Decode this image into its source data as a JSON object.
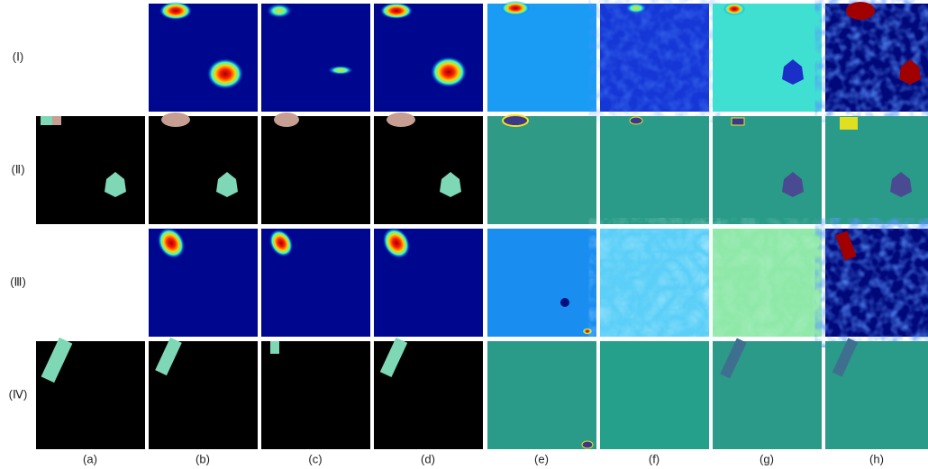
{
  "row_labels": [
    "(Ⅰ)",
    "(Ⅱ)",
    "(Ⅲ)",
    "(Ⅳ)"
  ],
  "column_labels": [
    "(a)",
    "(b)",
    "(c)",
    "(d)",
    "(e)",
    "(f)",
    "(g)",
    "(h)"
  ]
}
